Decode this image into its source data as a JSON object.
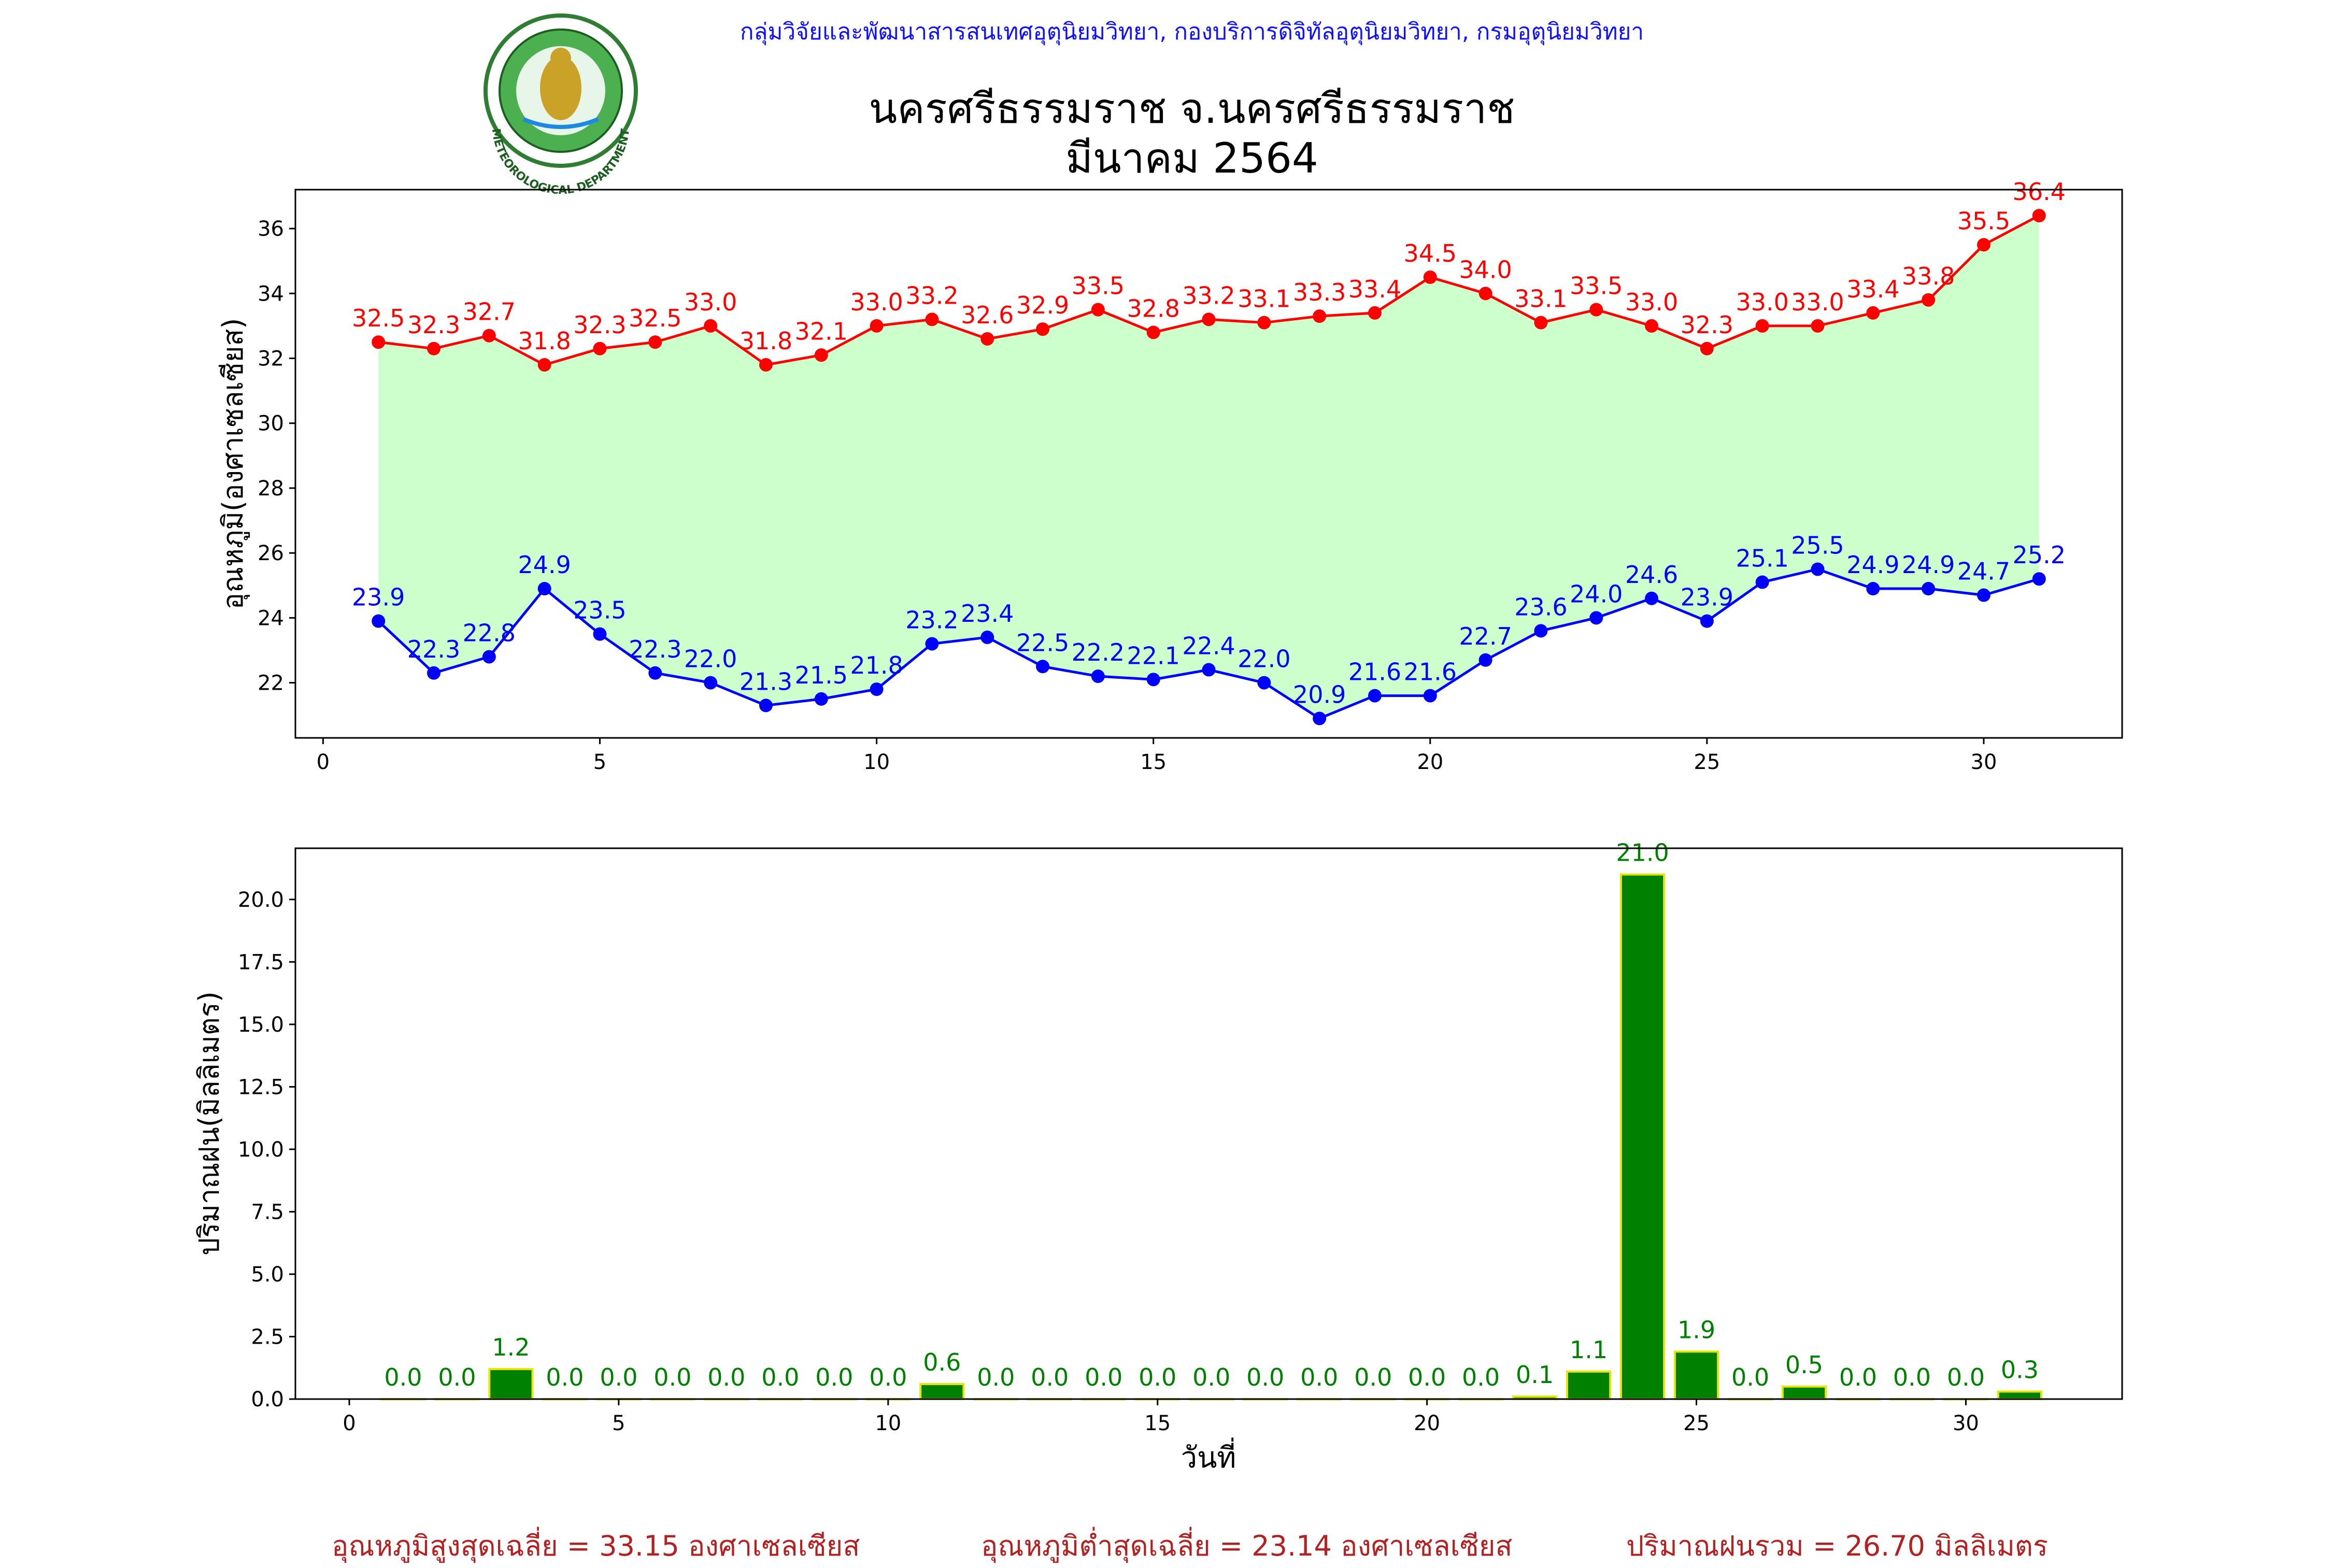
{
  "header": {
    "credit": "กลุ่มวิจัยและพัฒนาสารสนเทศอุตุนิยมวิทยา, กองบริการดิจิทัลอุตุนิยมวิทยา, กรมอุตุนิยมวิทยา",
    "title_line1": "นครศรีธรรมราช จ.นครศรีธรรมราช",
    "title_line2": "มีนาคม 2564",
    "logo_text": "METEOROLOGICAL DEPARTMENT"
  },
  "colors": {
    "max_line": "#ff0000",
    "min_line": "#0000ff",
    "band_fill": "#ccffcc",
    "rain_bar": "#008000",
    "rain_edge": "#e6e600",
    "rain_label": "#008000",
    "footer_text": "#b22222"
  },
  "chart_data": [
    {
      "type": "line",
      "ylabel": "อุณหภูมิ(องศาเซลเซียส)",
      "xlabel": "",
      "x": [
        1,
        2,
        3,
        4,
        5,
        6,
        7,
        8,
        9,
        10,
        11,
        12,
        13,
        14,
        15,
        16,
        17,
        18,
        19,
        20,
        21,
        22,
        23,
        24,
        25,
        26,
        27,
        28,
        29,
        30,
        31
      ],
      "xlim": [
        -0.5,
        32.5
      ],
      "ylim": [
        20.3,
        37.2
      ],
      "xticks": [
        0,
        5,
        10,
        15,
        20,
        25,
        30
      ],
      "yticks": [
        22,
        24,
        26,
        28,
        30,
        32,
        34,
        36
      ],
      "fill_between": true,
      "grid": false,
      "series": [
        {
          "name": "max",
          "values": [
            32.5,
            32.3,
            32.7,
            31.8,
            32.3,
            32.5,
            33.0,
            31.8,
            32.1,
            33.0,
            33.2,
            32.6,
            32.9,
            33.5,
            32.8,
            33.2,
            33.1,
            33.3,
            33.4,
            34.5,
            34.0,
            33.1,
            33.5,
            33.0,
            32.3,
            33.0,
            33.0,
            33.4,
            33.8,
            35.5,
            36.4
          ]
        },
        {
          "name": "min",
          "values": [
            23.9,
            22.3,
            22.8,
            24.9,
            23.5,
            22.3,
            22.0,
            21.3,
            21.5,
            21.8,
            23.2,
            23.4,
            22.5,
            22.2,
            22.1,
            22.4,
            22.0,
            20.9,
            21.6,
            21.6,
            22.7,
            23.6,
            24.0,
            24.6,
            23.9,
            25.1,
            25.5,
            24.9,
            24.9,
            24.7,
            25.2
          ]
        }
      ]
    },
    {
      "type": "bar",
      "ylabel": "ปริมาณฝน(มิลลิเมตร)",
      "xlabel": "วันที่",
      "x": [
        1,
        2,
        3,
        4,
        5,
        6,
        7,
        8,
        9,
        10,
        11,
        12,
        13,
        14,
        15,
        16,
        17,
        18,
        19,
        20,
        21,
        22,
        23,
        24,
        25,
        26,
        27,
        28,
        29,
        30,
        31
      ],
      "values": [
        0.0,
        0.0,
        1.2,
        0.0,
        0.0,
        0.0,
        0.0,
        0.0,
        0.0,
        0.0,
        0.6,
        0.0,
        0.0,
        0.0,
        0.0,
        0.0,
        0.0,
        0.0,
        0.0,
        0.0,
        0.0,
        0.1,
        1.1,
        21.0,
        1.9,
        0.0,
        0.5,
        0.0,
        0.0,
        0.0,
        0.3
      ],
      "xlim": [
        -1.0,
        32.9
      ],
      "ylim": [
        0,
        22.05
      ],
      "xticks": [
        0,
        5,
        10,
        15,
        20,
        25,
        30
      ],
      "yticks": [
        0.0,
        2.5,
        5.0,
        7.5,
        10.0,
        12.5,
        15.0,
        17.5,
        20.0
      ],
      "grid": false
    }
  ],
  "footer": {
    "avg_max": "อุณหภูมิสูงสุดเฉลี่ย = 33.15 องศาเซลเซียส",
    "avg_min": "อุณหภูมิต่ำสุดเฉลี่ย = 23.14 องศาเซลเซียส",
    "total_rain": "ปริมาณฝนรวม = 26.70 มิลลิเมตร"
  }
}
